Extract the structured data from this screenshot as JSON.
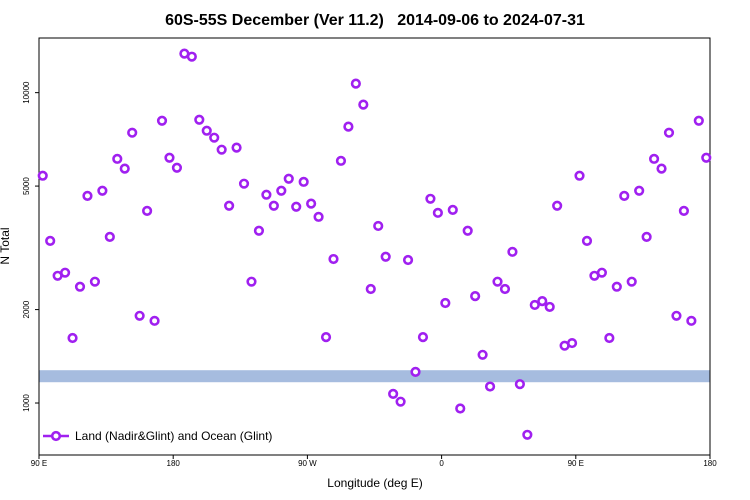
{
  "chart_data": {
    "type": "scatter",
    "title": "60S-55S December (Ver 11.2)   2014-09-06 to 2024-07-31",
    "x_label": "Longitude (deg E)",
    "y_label": "N Total",
    "xlim": [
      90,
      540
    ],
    "ylim": [
      680,
      15000
    ],
    "y_scale": "log",
    "xticks": [
      {
        "value": 90,
        "label": "90 E"
      },
      180,
      {
        "value": 270,
        "label": "90 W"
      },
      {
        "value": 360,
        "label": "0"
      },
      {
        "value": 450,
        "label": "90 E"
      },
      {
        "value": 540,
        "label": "180"
      }
    ],
    "yticks": [
      1000,
      2000,
      5000,
      10000
    ],
    "legend": "bottom-left",
    "band": {
      "value": 1220,
      "color": "#a6bcdf"
    },
    "x": [
      92.5,
      97.5,
      102.5,
      107.5,
      112.5,
      117.5,
      122.5,
      127.5,
      132.5,
      137.5,
      142.5,
      147.5,
      152.5,
      157.5,
      162.5,
      167.5,
      172.5,
      177.5,
      182.5,
      187.5,
      192.5,
      197.5,
      202.5,
      207.5,
      212.5,
      217.5,
      222.5,
      227.5,
      232.5,
      237.5,
      242.5,
      247.5,
      252.5,
      257.5,
      262.5,
      267.5,
      272.5,
      277.5,
      282.5,
      287.5,
      292.5,
      297.5,
      302.5,
      307.5,
      312.5,
      317.5,
      322.5,
      327.5,
      332.5,
      337.5,
      342.5,
      347.5,
      352.5,
      357.5,
      362.5,
      367.5,
      372.5,
      377.5,
      382.5,
      387.5,
      392.5,
      397.5,
      402.5,
      407.5,
      412.5,
      417.5,
      422.5,
      427.5,
      432.5,
      437.5,
      442.5,
      447.5,
      452.5,
      457.5,
      462.5,
      467.5,
      472.5,
      477.5,
      482.5,
      487.5,
      492.5,
      497.5,
      502.5,
      507.5,
      512.5,
      517.5,
      522.5,
      527.5,
      532.5,
      537.5
    ],
    "series": [
      {
        "name": "Land (Nadir&Glint) and Ocean (Glint)",
        "color": "#a020f0",
        "values": [
          5400,
          3330,
          2570,
          2630,
          1620,
          2370,
          4650,
          2460,
          4830,
          3430,
          6120,
          5690,
          7430,
          1910,
          4160,
          1840,
          8120,
          6170,
          5730,
          13360,
          13060,
          8180,
          7540,
          7160,
          6550,
          4320,
          6650,
          5090,
          2460,
          3590,
          4690,
          4320,
          4830,
          5280,
          4290,
          5160,
          4390,
          3980,
          1630,
          2910,
          6030,
          7770,
          10690,
          9150,
          2330,
          3720,
          2960,
          1070,
          1010,
          2890,
          1260,
          1630,
          4550,
          4100,
          2100,
          4190,
          960,
          3590,
          2210,
          1430,
          1130,
          2460,
          2330,
          3070,
          1150,
          790,
          2070,
          2130,
          2040,
          4320,
          1530,
          1560,
          5400,
          3330,
          2570,
          2630,
          1620,
          2370,
          4650,
          2460,
          4830,
          3430,
          6120,
          5690,
          7430,
          1910,
          4160,
          1840,
          8120,
          6170
        ]
      }
    ]
  }
}
